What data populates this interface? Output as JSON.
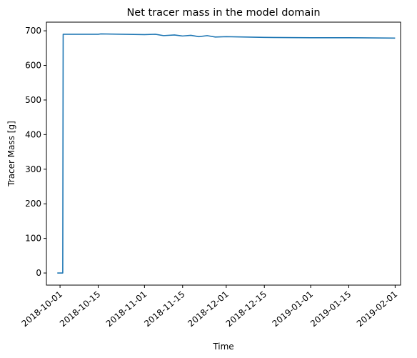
{
  "chart_data": {
    "type": "line",
    "title": "Net tracer mass in the model domain",
    "xlabel": "Time",
    "ylabel": "Tracer Mass [g]",
    "xlim": [
      "2018-09-26",
      "2019-02-03"
    ],
    "ylim": [
      -35,
      725
    ],
    "y_ticks": [
      0,
      100,
      200,
      300,
      400,
      500,
      600,
      700
    ],
    "x_ticks": [
      "2018-10-01",
      "2018-10-15",
      "2018-11-01",
      "2018-11-15",
      "2018-12-01",
      "2018-12-15",
      "2019-01-01",
      "2019-01-15",
      "2019-02-01"
    ],
    "x_tick_rotation_deg": 40,
    "grid": false,
    "legend": "none",
    "colors": {
      "line": "#1f77b4",
      "axes": "#000000"
    },
    "series": [
      {
        "x": [
          "2018-09-30",
          "2018-10-01",
          "2018-10-02",
          "2018-10-02",
          "2018-10-02",
          "2018-10-02",
          "2018-10-15",
          "2018-10-16",
          "2018-11-01",
          "2018-11-05",
          "2018-11-08",
          "2018-11-12",
          "2018-11-15",
          "2018-11-18",
          "2018-11-21",
          "2018-11-24",
          "2018-11-27",
          "2018-12-01",
          "2018-12-15",
          "2019-01-01",
          "2019-01-15",
          "2019-02-01"
        ],
        "y": [
          0,
          0,
          0,
          230,
          460,
          690,
          690,
          691,
          689,
          690,
          686,
          688,
          685,
          687,
          683,
          686,
          682,
          683,
          681,
          680,
          680,
          679
        ]
      }
    ]
  }
}
